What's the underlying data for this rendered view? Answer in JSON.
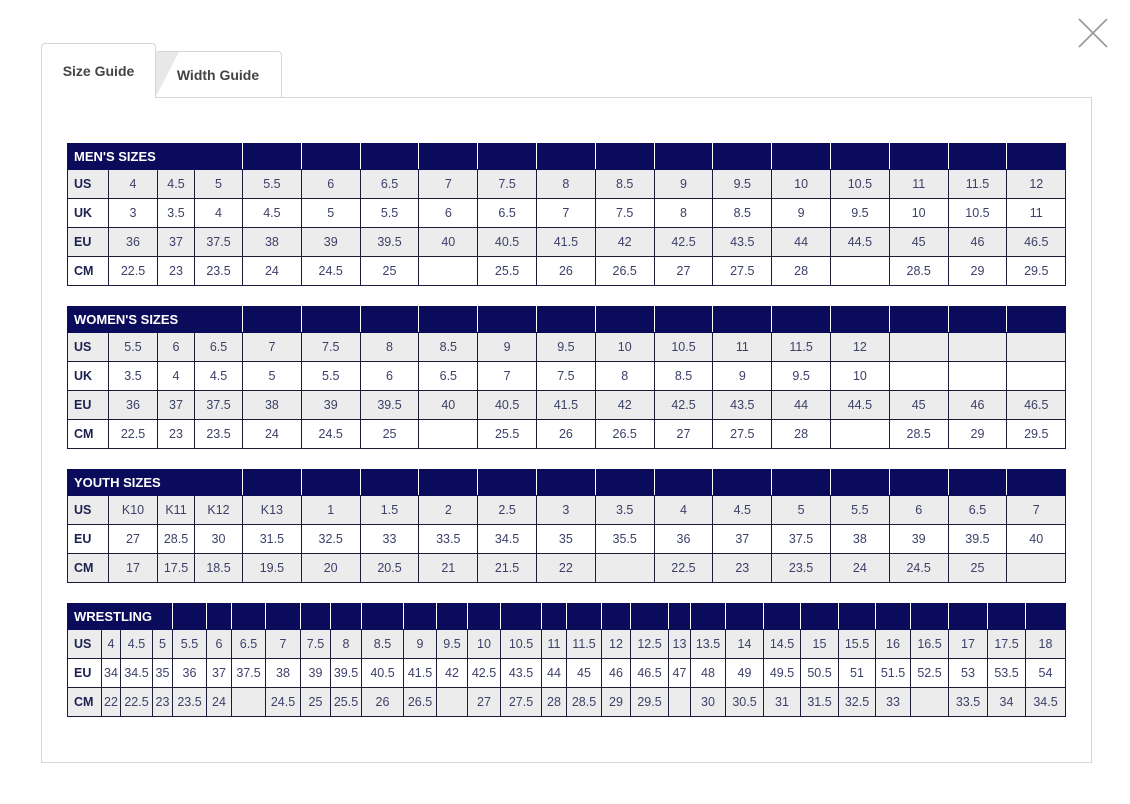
{
  "tabs": [
    {
      "label": "Size Guide",
      "active": true
    },
    {
      "label": "Width Guide",
      "active": false
    }
  ],
  "close_icon": "close-x-icon",
  "colors": {
    "header_bg": "#0b0b5c",
    "row_alt": "#ececec",
    "text": "#3d4068"
  },
  "tables": [
    {
      "title": "MEN'S SIZES",
      "rows": [
        {
          "label": "US",
          "values": [
            "4",
            "4.5",
            "5",
            "5.5",
            "6",
            "6.5",
            "7",
            "7.5",
            "8",
            "8.5",
            "9",
            "9.5",
            "10",
            "10.5",
            "11",
            "11.5",
            "12"
          ]
        },
        {
          "label": "UK",
          "values": [
            "3",
            "3.5",
            "4",
            "4.5",
            "5",
            "5.5",
            "6",
            "6.5",
            "7",
            "7.5",
            "8",
            "8.5",
            "9",
            "9.5",
            "10",
            "10.5",
            "11"
          ]
        },
        {
          "label": "EU",
          "values": [
            "36",
            "37",
            "37.5",
            "38",
            "39",
            "39.5",
            "40",
            "40.5",
            "41.5",
            "42",
            "42.5",
            "43.5",
            "44",
            "44.5",
            "45",
            "46",
            "46.5"
          ]
        },
        {
          "label": "CM",
          "values": [
            "22.5",
            "23",
            "23.5",
            "24",
            "24.5",
            "25",
            "",
            "25.5",
            "26",
            "26.5",
            "27",
            "27.5",
            "28",
            "",
            "28.5",
            "29",
            "29.5"
          ]
        }
      ]
    },
    {
      "title": "WOMEN'S SIZES",
      "rows": [
        {
          "label": "US",
          "values": [
            "5.5",
            "6",
            "6.5",
            "7",
            "7.5",
            "8",
            "8.5",
            "9",
            "9.5",
            "10",
            "10.5",
            "11",
            "11.5",
            "12",
            "",
            "",
            ""
          ]
        },
        {
          "label": "UK",
          "values": [
            "3.5",
            "4",
            "4.5",
            "5",
            "5.5",
            "6",
            "6.5",
            "7",
            "7.5",
            "8",
            "8.5",
            "9",
            "9.5",
            "10",
            "",
            "",
            ""
          ]
        },
        {
          "label": "EU",
          "values": [
            "36",
            "37",
            "37.5",
            "38",
            "39",
            "39.5",
            "40",
            "40.5",
            "41.5",
            "42",
            "42.5",
            "43.5",
            "44",
            "44.5",
            "45",
            "46",
            "46.5"
          ]
        },
        {
          "label": "CM",
          "values": [
            "22.5",
            "23",
            "23.5",
            "24",
            "24.5",
            "25",
            "",
            "25.5",
            "26",
            "26.5",
            "27",
            "27.5",
            "28",
            "",
            "28.5",
            "29",
            "29.5"
          ]
        }
      ]
    },
    {
      "title": "YOUTH SIZES",
      "rows": [
        {
          "label": "US",
          "values": [
            "K10",
            "K11",
            "K12",
            "K13",
            "1",
            "1.5",
            "2",
            "2.5",
            "3",
            "3.5",
            "4",
            "4.5",
            "5",
            "5.5",
            "6",
            "6.5",
            "7"
          ]
        },
        {
          "label": "EU",
          "values": [
            "27",
            "28.5",
            "30",
            "31.5",
            "32.5",
            "33",
            "33.5",
            "34.5",
            "35",
            "35.5",
            "36",
            "37",
            "37.5",
            "38",
            "39",
            "39.5",
            "40"
          ]
        },
        {
          "label": "CM",
          "values": [
            "17",
            "17.5",
            "18.5",
            "19.5",
            "20",
            "20.5",
            "21",
            "21.5",
            "22",
            "",
            "22.5",
            "23",
            "23.5",
            "24",
            "24.5",
            "25",
            ""
          ]
        }
      ]
    },
    {
      "title": "WRESTLING",
      "rows": [
        {
          "label": "US",
          "values": [
            "4",
            "4.5",
            "5",
            "5.5",
            "6",
            "6.5",
            "7",
            "7.5",
            "8",
            "8.5",
            "9",
            "9.5",
            "10",
            "10.5",
            "11",
            "11.5",
            "12",
            "12.5",
            "13",
            "13.5",
            "14",
            "14.5",
            "15",
            "15.5",
            "16",
            "16.5",
            "17",
            "17.5",
            "18"
          ]
        },
        {
          "label": "EU",
          "values": [
            "34",
            "34.5",
            "35",
            "36",
            "37",
            "37.5",
            "38",
            "39",
            "39.5",
            "40.5",
            "41.5",
            "42",
            "42.5",
            "43.5",
            "44",
            "45",
            "46",
            "46.5",
            "47",
            "48",
            "49",
            "49.5",
            "50.5",
            "51",
            "51.5",
            "52.5",
            "53",
            "53.5",
            "54"
          ]
        },
        {
          "label": "CM",
          "values": [
            "22",
            "22.5",
            "23",
            "23.5",
            "24",
            "",
            "24.5",
            "25",
            "25.5",
            "26",
            "26.5",
            "",
            "27",
            "27.5",
            "28",
            "28.5",
            "29",
            "29.5",
            "",
            "30",
            "30.5",
            "31",
            "31.5",
            "32.5",
            "33",
            "",
            "33.5",
            "34",
            "34.5"
          ]
        }
      ]
    }
  ]
}
